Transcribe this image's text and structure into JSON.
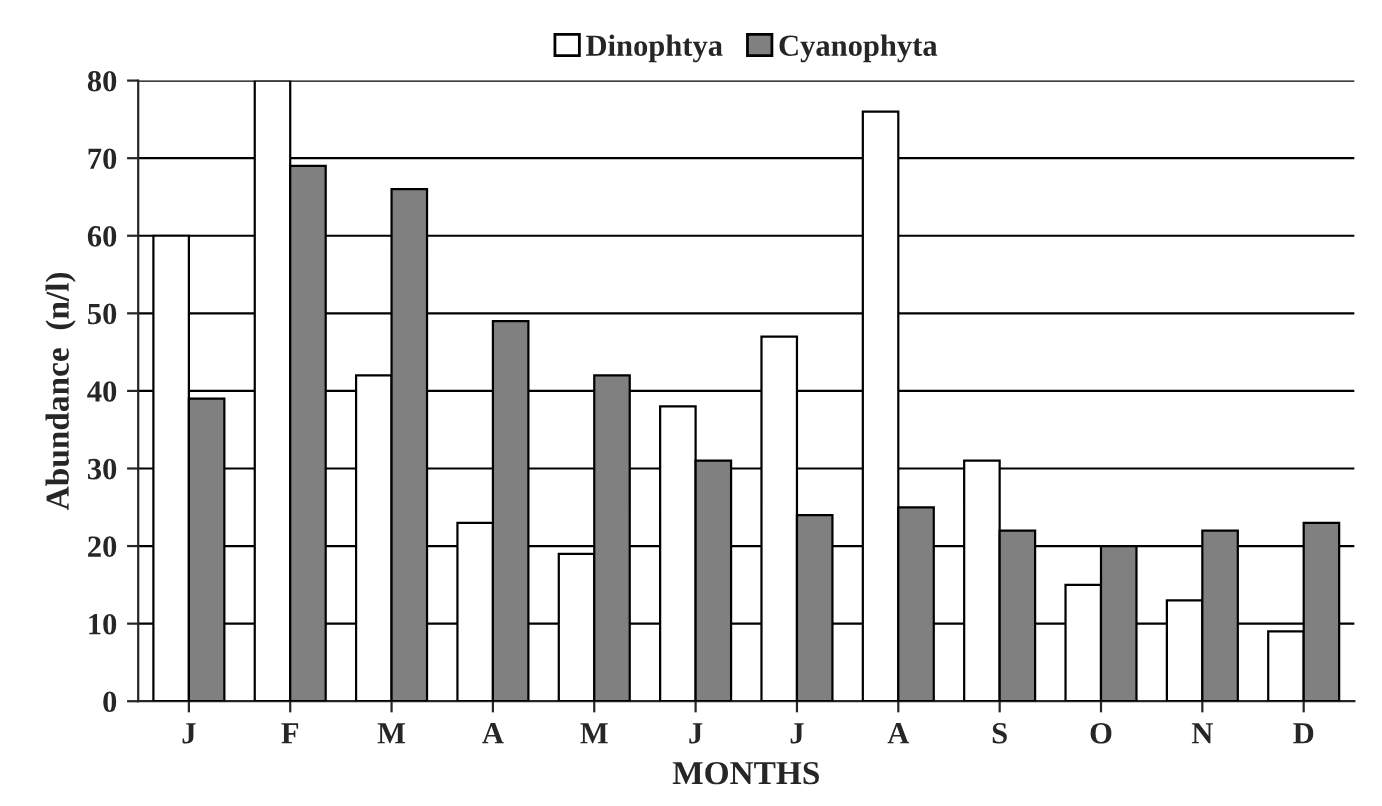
{
  "chart_data": {
    "type": "bar",
    "xlabel": "MONTHS",
    "ylabel": "Abundance  (n/l)",
    "categories": [
      "J",
      "F",
      "M",
      "A",
      "M",
      "J",
      "J",
      "A",
      "S",
      "O",
      "N",
      "D"
    ],
    "series": [
      {
        "name": "Dinophtya",
        "color": "#ffffff",
        "values": [
          60,
          80,
          42,
          23,
          19,
          38,
          47,
          76,
          31,
          15,
          13,
          9
        ]
      },
      {
        "name": "Cyanophyta",
        "color": "#808080",
        "values": [
          39,
          69,
          66,
          49,
          42,
          31,
          24,
          25,
          22,
          20,
          22,
          23
        ]
      }
    ],
    "ylim": [
      0,
      80
    ],
    "yticks": [
      0,
      10,
      20,
      30,
      40,
      50,
      60,
      70,
      80
    ],
    "grid": "y",
    "legend": "top"
  }
}
